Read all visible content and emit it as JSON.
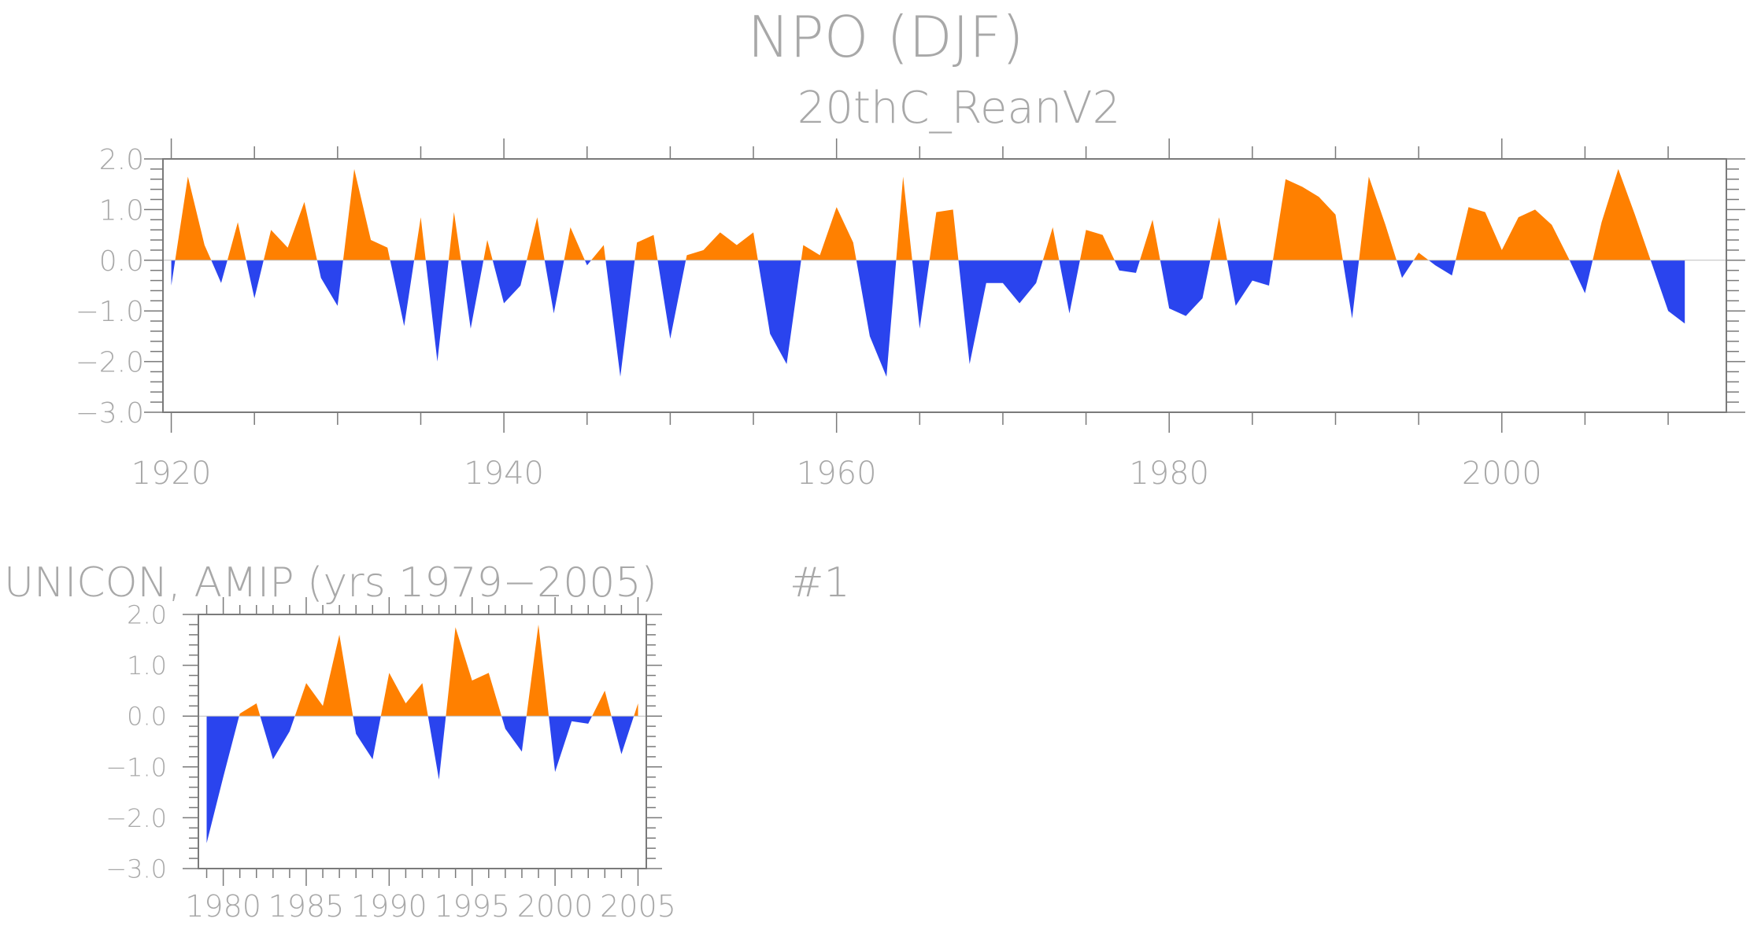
{
  "figure": {
    "title": "NPO (DJF)",
    "colors": {
      "positive": "#ff8000",
      "negative": "#2a44ee",
      "text": "#a8a8a8",
      "axis": "#7a7a7a"
    }
  },
  "chart_data": [
    {
      "type": "area",
      "title": "20thC_ReanV2",
      "xlabel": "",
      "ylabel": "",
      "xlim": [
        1919.5,
        2013.5
      ],
      "ylim": [
        -3.0,
        2.0
      ],
      "grid": false,
      "xticks": [
        "1920",
        "1940",
        "1960",
        "1980",
        "2000"
      ],
      "xtick_values": [
        1920,
        1940,
        1960,
        1980,
        2000
      ],
      "yticks": [
        "2.0",
        "1.0",
        "0.0",
        "−1.0",
        "−2.0",
        "−3.0"
      ],
      "ytick_values": [
        2,
        1,
        0,
        -1,
        -2,
        -3
      ],
      "x": [
        1920,
        1921,
        1922,
        1923,
        1924,
        1925,
        1926,
        1927,
        1928,
        1929,
        1930,
        1931,
        1932,
        1933,
        1934,
        1935,
        1936,
        1937,
        1938,
        1939,
        1940,
        1941,
        1942,
        1943,
        1944,
        1945,
        1946,
        1947,
        1948,
        1949,
        1950,
        1951,
        1952,
        1953,
        1954,
        1955,
        1956,
        1957,
        1958,
        1959,
        1960,
        1961,
        1962,
        1963,
        1964,
        1965,
        1966,
        1967,
        1968,
        1969,
        1970,
        1971,
        1972,
        1973,
        1974,
        1975,
        1976,
        1977,
        1978,
        1979,
        1980,
        1981,
        1982,
        1983,
        1984,
        1985,
        1986,
        1987,
        1988,
        1989,
        1990,
        1991,
        1992,
        1993,
        1994,
        1995,
        1996,
        1997,
        1998,
        1999,
        2000,
        2001,
        2002,
        2003,
        2004,
        2005,
        2006,
        2007,
        2008,
        2009,
        2010,
        2011
      ],
      "values": [
        -0.5,
        1.65,
        0.3,
        -0.45,
        0.75,
        -0.75,
        0.6,
        0.25,
        1.15,
        -0.35,
        -0.9,
        1.8,
        0.4,
        0.25,
        -1.3,
        0.85,
        -2.0,
        0.95,
        -1.35,
        0.4,
        -0.85,
        -0.5,
        0.85,
        -1.05,
        0.65,
        -0.1,
        0.3,
        -2.3,
        0.35,
        0.5,
        -1.55,
        0.1,
        0.2,
        0.55,
        0.3,
        0.55,
        -1.45,
        -2.05,
        0.3,
        0.1,
        1.05,
        0.35,
        -1.5,
        -2.3,
        1.65,
        -1.35,
        0.95,
        1.0,
        -2.05,
        -0.45,
        -0.45,
        -0.85,
        -0.45,
        0.65,
        -1.05,
        0.6,
        0.5,
        -0.2,
        -0.25,
        0.8,
        -0.95,
        -1.1,
        -0.75,
        0.85,
        -0.9,
        -0.4,
        -0.5,
        1.6,
        1.45,
        1.25,
        0.9,
        -1.15,
        1.65,
        0.7,
        -0.35,
        0.15,
        -0.1,
        -0.3,
        1.05,
        0.95,
        0.2,
        0.85,
        1.0,
        0.7,
        0.05,
        -0.65,
        0.75,
        1.8,
        0.9,
        -0.05,
        -1.0,
        -1.25
      ]
    },
    {
      "type": "area",
      "title": "UNICON, AMIP (yrs 1979−2005)",
      "annotation": "#1",
      "xlabel": "",
      "ylabel": "",
      "xlim": [
        1978.5,
        2005.5
      ],
      "ylim": [
        -3.0,
        2.0
      ],
      "grid": false,
      "xticks": [
        "1980",
        "1985",
        "1990",
        "1995",
        "2000",
        "2005"
      ],
      "xtick_values": [
        1980,
        1985,
        1990,
        1995,
        2000,
        2005
      ],
      "yticks": [
        "2.0",
        "1.0",
        "0.0",
        "−1.0",
        "−2.0",
        "−3.0"
      ],
      "ytick_values": [
        2,
        1,
        0,
        -1,
        -2,
        -3
      ],
      "x": [
        1979,
        1980,
        1981,
        1982,
        1983,
        1984,
        1985,
        1986,
        1987,
        1988,
        1989,
        1990,
        1991,
        1992,
        1993,
        1994,
        1995,
        1996,
        1997,
        1998,
        1999,
        2000,
        2001,
        2002,
        2003,
        2004,
        2005
      ],
      "values": [
        -2.5,
        -1.2,
        0.05,
        0.25,
        -0.85,
        -0.3,
        0.65,
        0.2,
        1.6,
        -0.35,
        -0.85,
        0.85,
        0.25,
        0.65,
        -1.25,
        1.75,
        0.7,
        0.85,
        -0.25,
        -0.7,
        1.8,
        -1.1,
        -0.1,
        -0.15,
        0.5,
        -0.75,
        0.25
      ]
    }
  ]
}
